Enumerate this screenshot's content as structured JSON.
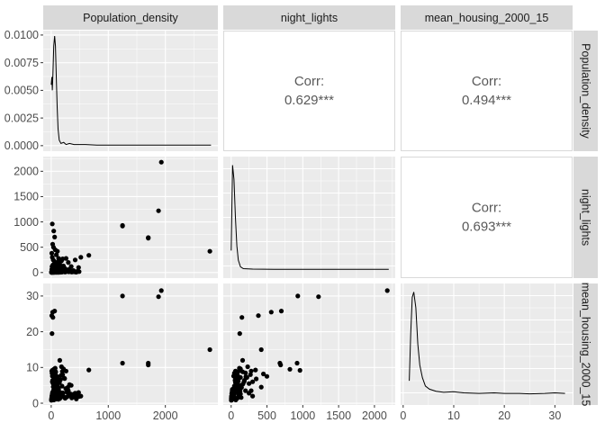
{
  "chart_data": {
    "type": "scatter",
    "variables": [
      "Population_density",
      "night_lights",
      "mean_housing_2000_15"
    ],
    "colors": {
      "panel_bg": "#ebebeb",
      "grid": "#ffffff",
      "strip_bg": "#d9d9d9",
      "point": "#000000",
      "text": "#595959"
    },
    "axes": {
      "Population_density": {
        "ticks": [
          0,
          1000,
          2000
        ],
        "lim": [
          -140,
          2920
        ]
      },
      "night_lights": {
        "ticks": [
          0,
          500,
          1000,
          1500,
          2000
        ],
        "lim": [
          -110,
          2290
        ]
      },
      "mean_housing_2000_15": {
        "ticks": [
          0,
          10,
          20,
          30
        ],
        "lim": [
          -0.5,
          33.5
        ]
      },
      "density_y": {
        "ticks": [
          "0.0000",
          "0.0025",
          "0.0050",
          "0.0075",
          "0.0100"
        ],
        "tick_values": [
          0,
          0.0025,
          0.005,
          0.0075,
          0.01
        ],
        "lim": [
          -0.0005,
          0.0104
        ]
      }
    },
    "correlations": [
      {
        "pair": [
          "Population_density",
          "night_lights"
        ],
        "label": "Corr:",
        "value": "0.629***"
      },
      {
        "pair": [
          "Population_density",
          "mean_housing_2000_15"
        ],
        "label": "Corr:",
        "value": "0.494***"
      },
      {
        "pair": [
          "night_lights",
          "mean_housing_2000_15"
        ],
        "label": "Corr:",
        "value": "0.693***"
      }
    ],
    "densities": {
      "Population_density": [
        [
          0,
          0.0055
        ],
        [
          12,
          0.0062
        ],
        [
          20,
          0.005
        ],
        [
          30,
          0.0065
        ],
        [
          45,
          0.009
        ],
        [
          60,
          0.0099
        ],
        [
          75,
          0.009
        ],
        [
          90,
          0.006
        ],
        [
          105,
          0.0035
        ],
        [
          120,
          0.0015
        ],
        [
          140,
          0.0005
        ],
        [
          170,
          0.0002
        ],
        [
          220,
          0.0003
        ],
        [
          260,
          0.0001
        ],
        [
          320,
          0.0002
        ],
        [
          400,
          0.0001
        ],
        [
          600,
          0.0001
        ],
        [
          800,
          5e-05
        ],
        [
          1200,
          5e-05
        ],
        [
          1700,
          5e-05
        ],
        [
          2000,
          5e-05
        ],
        [
          2500,
          5e-05
        ],
        [
          2800,
          5e-05
        ]
      ],
      "night_lights": [
        [
          0,
          0.02
        ],
        [
          20,
          0.11
        ],
        [
          40,
          0.095
        ],
        [
          60,
          0.055
        ],
        [
          80,
          0.025
        ],
        [
          100,
          0.01
        ],
        [
          130,
          0.003
        ],
        [
          170,
          0.001
        ],
        [
          300,
          0.0005
        ],
        [
          600,
          0.0003
        ],
        [
          1000,
          0.0003
        ],
        [
          1500,
          0.0002
        ],
        [
          2000,
          0.0002
        ],
        [
          2200,
          0.0002
        ]
      ],
      "mean_housing_2000_15": [
        [
          1.2,
          0.15
        ],
        [
          1.5,
          0.6
        ],
        [
          1.8,
          0.95
        ],
        [
          2.1,
          1.0
        ],
        [
          2.5,
          0.85
        ],
        [
          2.9,
          0.5
        ],
        [
          3.3,
          0.3
        ],
        [
          3.8,
          0.18
        ],
        [
          4.4,
          0.1
        ],
        [
          5.2,
          0.07
        ],
        [
          6.5,
          0.05
        ],
        [
          8,
          0.04
        ],
        [
          10,
          0.045
        ],
        [
          12,
          0.035
        ],
        [
          15,
          0.03
        ],
        [
          18,
          0.035
        ],
        [
          20,
          0.03
        ],
        [
          23,
          0.03
        ],
        [
          25,
          0.025
        ],
        [
          28,
          0.03
        ],
        [
          30,
          0.035
        ],
        [
          32,
          0.03
        ]
      ]
    },
    "points": [
      [
        20,
        960,
        9.2
      ],
      [
        45,
        820,
        9.5
      ],
      [
        25,
        560,
        25.5
      ],
      [
        60,
        700,
        25.8
      ],
      [
        10,
        380,
        24.5
      ],
      [
        30,
        150,
        24.0
      ],
      [
        15,
        120,
        19.5
      ],
      [
        1930,
        2180,
        31.5
      ],
      [
        1880,
        1220,
        29.8
      ],
      [
        1250,
        930,
        30.0
      ],
      [
        1700,
        680,
        11.2
      ],
      [
        2780,
        420,
        15.0
      ],
      [
        660,
        340,
        9.3
      ],
      [
        1250,
        920,
        11.2
      ],
      [
        1700,
        690,
        10.7
      ],
      [
        20,
        300,
        6.0
      ],
      [
        35,
        250,
        5.5
      ],
      [
        55,
        220,
        7.2
      ],
      [
        75,
        200,
        8.5
      ],
      [
        100,
        180,
        6.0
      ],
      [
        150,
        160,
        12.0
      ],
      [
        180,
        230,
        10.2
      ],
      [
        200,
        270,
        8.0
      ],
      [
        230,
        60,
        7.0
      ],
      [
        260,
        280,
        9.0
      ],
      [
        300,
        200,
        3.5
      ],
      [
        350,
        120,
        5.0
      ],
      [
        420,
        250,
        2.8
      ],
      [
        480,
        100,
        3.0
      ],
      [
        390,
        40,
        2.5
      ],
      [
        520,
        300,
        2.0
      ],
      [
        130,
        80,
        4.0
      ],
      [
        160,
        50,
        3.0
      ],
      [
        210,
        40,
        2.0
      ],
      [
        240,
        30,
        1.5
      ],
      [
        280,
        20,
        1.8
      ],
      [
        310,
        15,
        2.2
      ],
      [
        360,
        10,
        1.5
      ],
      [
        440,
        8,
        1.2
      ],
      [
        5,
        10,
        1.0
      ],
      [
        8,
        20,
        1.5
      ],
      [
        12,
        5,
        2.0
      ],
      [
        18,
        15,
        2.5
      ],
      [
        22,
        30,
        3.0
      ],
      [
        28,
        8,
        1.8
      ],
      [
        35,
        12,
        2.2
      ],
      [
        42,
        18,
        1.2
      ],
      [
        50,
        6,
        1.6
      ],
      [
        58,
        25,
        2.8
      ],
      [
        65,
        14,
        3.4
      ],
      [
        72,
        9,
        1.1
      ],
      [
        80,
        40,
        4.2
      ],
      [
        88,
        22,
        2.0
      ],
      [
        95,
        35,
        3.6
      ],
      [
        110,
        12,
        1.3
      ],
      [
        120,
        28,
        2.4
      ],
      [
        135,
        18,
        1.9
      ],
      [
        145,
        60,
        5.8
      ],
      [
        165,
        70,
        6.6
      ],
      [
        175,
        90,
        7.8
      ],
      [
        190,
        45,
        4.8
      ],
      [
        205,
        25,
        2.9
      ],
      [
        225,
        15,
        1.7
      ],
      [
        245,
        10,
        1.4
      ],
      [
        270,
        35,
        3.1
      ],
      [
        290,
        55,
        4.4
      ],
      [
        320,
        65,
        5.2
      ],
      [
        340,
        30,
        2.6
      ],
      [
        370,
        20,
        2.0
      ],
      [
        400,
        15,
        1.8
      ],
      [
        430,
        10,
        1.6
      ],
      [
        460,
        25,
        2.3
      ],
      [
        490,
        18,
        1.9
      ],
      [
        3,
        2,
        0.8
      ],
      [
        6,
        4,
        1.2
      ],
      [
        9,
        7,
        0.9
      ],
      [
        14,
        3,
        1.4
      ],
      [
        17,
        9,
        2.1
      ],
      [
        24,
        6,
        1.7
      ],
      [
        27,
        11,
        2.6
      ],
      [
        33,
        4,
        1.0
      ],
      [
        38,
        14,
        3.3
      ],
      [
        47,
        3,
        1.5
      ],
      [
        52,
        8,
        2.7
      ],
      [
        63,
        5,
        1.9
      ],
      [
        68,
        16,
        3.8
      ],
      [
        85,
        4,
        1.3
      ],
      [
        92,
        10,
        2.5
      ],
      [
        105,
        6,
        1.6
      ],
      [
        115,
        20,
        3.9
      ],
      [
        125,
        3,
        1.1
      ],
      [
        140,
        9,
        2.0
      ],
      [
        155,
        5,
        1.5
      ],
      [
        170,
        12,
        2.8
      ],
      [
        185,
        7,
        1.9
      ],
      [
        195,
        100,
        8.9
      ],
      [
        215,
        130,
        9.6
      ],
      [
        235,
        85,
        6.9
      ],
      [
        255,
        45,
        4.1
      ],
      [
        40,
        500,
        7.5
      ],
      [
        70,
        450,
        8.2
      ],
      [
        90,
        350,
        6.8
      ],
      [
        110,
        420,
        4.5
      ],
      [
        130,
        280,
        3.5
      ],
      [
        10,
        60,
        9.0
      ],
      [
        15,
        45,
        8.4
      ],
      [
        20,
        35,
        7.6
      ],
      [
        25,
        55,
        6.4
      ],
      [
        30,
        75,
        5.6
      ],
      [
        35,
        95,
        4.6
      ],
      [
        40,
        110,
        3.6
      ],
      [
        50,
        130,
        2.6
      ],
      [
        60,
        140,
        1.6
      ],
      [
        70,
        115,
        9.8
      ],
      [
        80,
        160,
        8.8
      ],
      [
        90,
        130,
        7.2
      ],
      [
        100,
        100,
        6.2
      ],
      [
        110,
        75,
        5.3
      ],
      [
        120,
        55,
        4.3
      ],
      [
        130,
        40,
        3.3
      ],
      [
        140,
        30,
        2.3
      ],
      [
        150,
        20,
        1.3
      ],
      [
        45,
        65,
        0.9
      ],
      [
        55,
        85,
        1.4
      ],
      [
        65,
        105,
        2.4
      ],
      [
        75,
        125,
        3.4
      ],
      [
        85,
        145,
        4.4
      ],
      [
        95,
        165,
        5.4
      ],
      [
        105,
        185,
        6.4
      ],
      [
        115,
        205,
        7.4
      ]
    ]
  }
}
